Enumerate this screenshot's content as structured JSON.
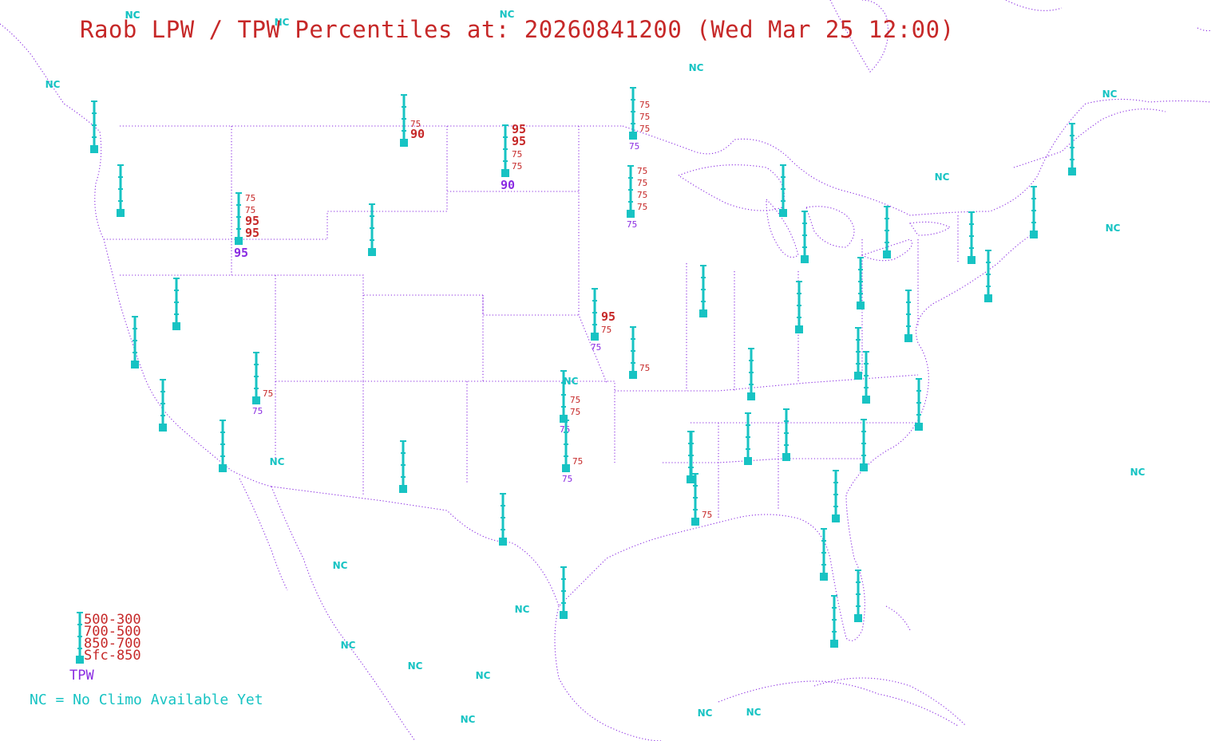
{
  "title": "Raob LPW / TPW Percentiles at: 20260841200 (Wed Mar 25 12:00)",
  "legend": {
    "layers": [
      "500-300",
      "700-500",
      "850-700",
      "Sfc-850"
    ],
    "tpw_label": "TPW",
    "nc_note": "NC = No Climo Available Yet"
  },
  "colors": {
    "title": "#c62828",
    "station": "#17c3c3",
    "layer_text": "#c62828",
    "tpw_text": "#8a2be2",
    "boundaries": "#8a2be2"
  },
  "stations": [
    {
      "layers": [],
      "tpw": ""
    },
    {
      "layers": [],
      "tpw": ""
    },
    {
      "layers": [
        "75",
        "90"
      ],
      "tpw": ""
    },
    {
      "layers": [
        "95",
        "95",
        "75",
        "75"
      ],
      "tpw": "90"
    },
    {
      "layers": [
        "75",
        "75",
        "75"
      ],
      "tpw": "75"
    },
    {
      "layers": [
        "75",
        "75",
        "95",
        "95"
      ],
      "tpw": "95"
    },
    {
      "layers": [
        "75",
        "75",
        "75",
        "75"
      ],
      "tpw": "75"
    },
    {
      "layers": [],
      "tpw": ""
    },
    {
      "layers": [],
      "tpw": ""
    },
    {
      "layers": [],
      "tpw": ""
    },
    {
      "layers": [],
      "tpw": ""
    },
    {
      "layers": [
        "75"
      ],
      "tpw": "75"
    },
    {
      "layers": [],
      "tpw": ""
    },
    {
      "layers": [],
      "tpw": ""
    },
    {
      "layers": [],
      "tpw": ""
    },
    {
      "layers": [],
      "tpw": ""
    },
    {
      "layers": [
        "95",
        "75"
      ],
      "tpw": "75"
    },
    {
      "layers": [
        "75"
      ],
      "tpw": ""
    },
    {
      "layers": [
        "75",
        "75"
      ],
      "tpw": "75"
    },
    {
      "layers": [
        "75"
      ],
      "tpw": "75"
    },
    {
      "layers": [],
      "tpw": ""
    },
    {
      "layers": [],
      "tpw": ""
    },
    {
      "layers": [],
      "tpw": ""
    },
    {
      "layers": [
        "75"
      ],
      "tpw": ""
    },
    {
      "layers": [],
      "tpw": ""
    },
    {
      "layers": [],
      "tpw": ""
    },
    {
      "layers": [],
      "tpw": ""
    },
    {
      "layers": [],
      "tpw": ""
    },
    {
      "layers": [],
      "tpw": ""
    },
    {
      "layers": [],
      "tpw": ""
    },
    {
      "layers": [],
      "tpw": ""
    },
    {
      "layers": [],
      "tpw": ""
    },
    {
      "layers": [],
      "tpw": ""
    },
    {
      "layers": [],
      "tpw": ""
    },
    {
      "layers": [],
      "tpw": ""
    },
    {
      "layers": [],
      "tpw": ""
    },
    {
      "layers": [],
      "tpw": ""
    },
    {
      "layers": [],
      "tpw": ""
    },
    {
      "layers": [],
      "tpw": ""
    },
    {
      "layers": [],
      "tpw": ""
    },
    {
      "layers": [],
      "tpw": ""
    },
    {
      "layers": [],
      "tpw": ""
    },
    {
      "layers": [],
      "tpw": ""
    },
    {
      "layers": [],
      "tpw": ""
    },
    {
      "layers": [],
      "tpw": ""
    },
    {
      "layers": [],
      "tpw": ""
    },
    {
      "layers": [],
      "tpw": ""
    },
    {
      "layers": [],
      "tpw": ""
    },
    {
      "layers": [],
      "tpw": ""
    }
  ],
  "nc_markers": [
    "NC",
    "NC",
    "NC",
    "NC",
    "NC",
    "NC",
    "NC",
    "NC",
    "NC",
    "NC",
    "NC",
    "NC",
    "NC",
    "NC",
    "NC",
    "NC",
    "NC",
    "NC",
    "NC",
    "NC"
  ]
}
